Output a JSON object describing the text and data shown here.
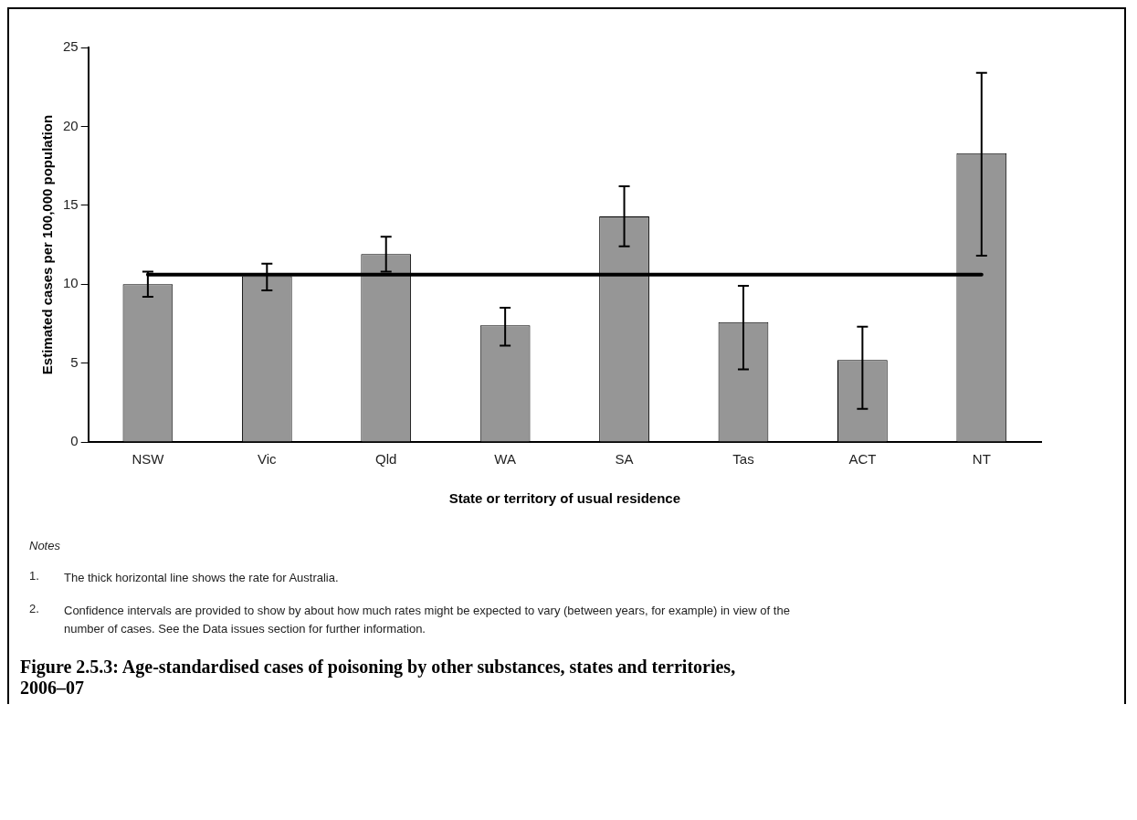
{
  "chart_data": {
    "type": "bar",
    "title": "Figure 2.5.3: Age-standardised cases of poisoning by other substances, states and territories, 2006–07",
    "xlabel": "State or territory of usual residence",
    "ylabel": "Estimated cases per 100,000 population",
    "categories": [
      "NSW",
      "Vic",
      "Qld",
      "WA",
      "SA",
      "Tas",
      "ACT",
      "NT"
    ],
    "values": [
      10.0,
      10.5,
      11.9,
      7.4,
      14.3,
      7.6,
      5.2,
      18.3
    ],
    "errors": [
      [
        9.2,
        10.8
      ],
      [
        9.6,
        11.3
      ],
      [
        10.8,
        13.0
      ],
      [
        6.1,
        8.5
      ],
      [
        12.4,
        16.2
      ],
      [
        4.6,
        9.9
      ],
      [
        2.1,
        7.3
      ],
      [
        11.8,
        23.4
      ]
    ],
    "color": "#969696",
    "ylim": [
      0,
      25
    ],
    "yticks": [
      0,
      5,
      10,
      15,
      20,
      25
    ],
    "grid": false,
    "legend": false,
    "ref_lines": [
      {
        "axis": "y",
        "value": 10.6,
        "color": "#000000"
      }
    ],
    "annotations": [
      "Notes",
      "1.\tThe thick horizontal line shows the rate for Australia.",
      "2.\tConfidence intervals are provided to show by about how much rates might be expected to vary (between years, for example) in view of the number of cases. See the Data issues section for further information."
    ]
  }
}
